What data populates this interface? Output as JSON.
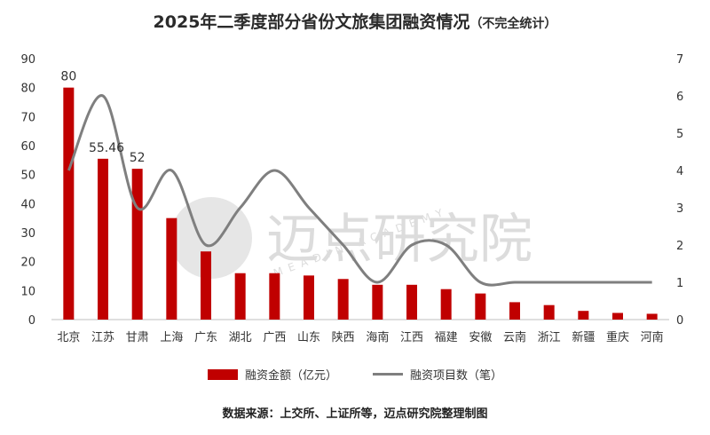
{
  "title": "2025年二季度部分省份文旅集团融资情况",
  "title_note": "（不完全统计）",
  "source": "数据来源：上交所、上证所等，迈点研究院整理制图",
  "watermark": {
    "cn": "迈点研究院",
    "en": "MEADIN ACADEMY"
  },
  "chart_data": {
    "type": "bar",
    "categories": [
      "北京",
      "江苏",
      "甘肃",
      "上海",
      "广东",
      "湖北",
      "广西",
      "山东",
      "陕西",
      "海南",
      "江西",
      "福建",
      "安徽",
      "云南",
      "浙江",
      "新疆",
      "重庆",
      "河南"
    ],
    "series": [
      {
        "name": "融资金额（亿元）",
        "type": "bar",
        "axis": "left",
        "color": "#c00000",
        "values": [
          80,
          55.46,
          52,
          35,
          23.5,
          16,
          16,
          15.2,
          14,
          12,
          12,
          10.5,
          9,
          6,
          5,
          3,
          2.3,
          2
        ],
        "labels": [
          "80",
          "55.46",
          "52",
          "",
          "",
          "",
          "",
          "",
          "",
          "",
          "",
          "",
          "",
          "",
          "",
          "",
          "",
          ""
        ]
      },
      {
        "name": "融资项目数（笔）",
        "type": "line",
        "smooth": true,
        "axis": "right",
        "color": "#7f7f7f",
        "values": [
          4,
          6,
          3,
          4,
          2,
          3,
          4,
          3,
          2,
          1,
          2,
          2,
          1,
          1,
          1,
          1,
          1,
          1
        ]
      }
    ],
    "y_left": {
      "min": 0,
      "max": 90,
      "step": 10
    },
    "y_right": {
      "min": 0,
      "max": 7,
      "step": 1
    },
    "grid": false,
    "legend": "bottom"
  }
}
